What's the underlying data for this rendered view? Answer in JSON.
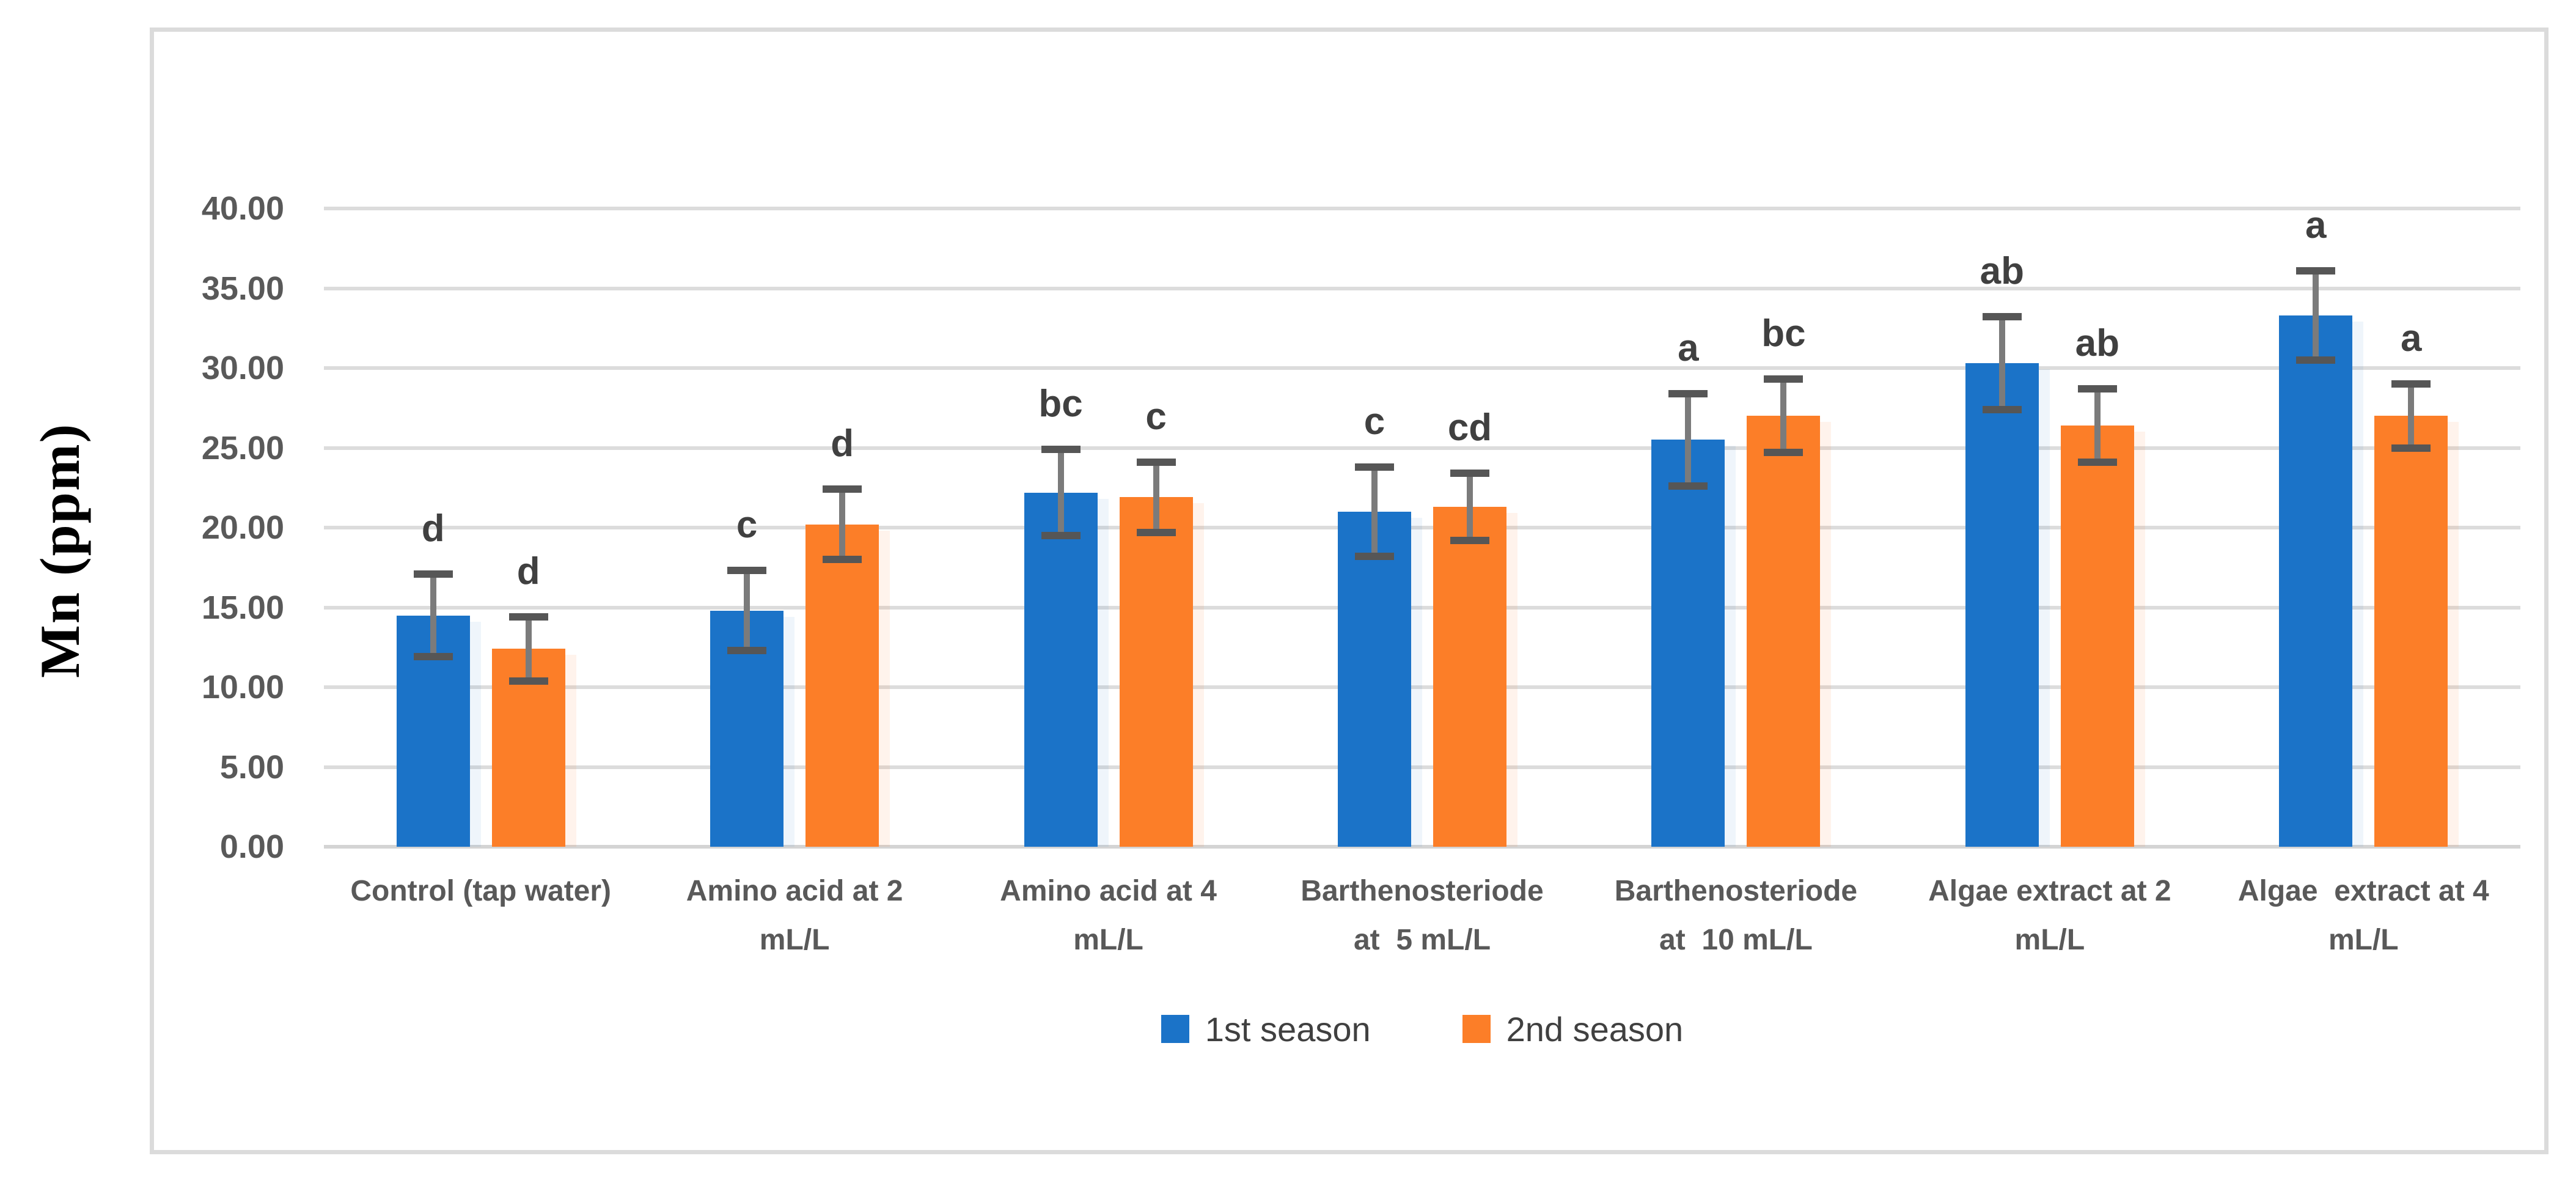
{
  "y_axis": {
    "title": "Mn (ppm)",
    "tick_labels": [
      "0.00",
      "5.00",
      "10.00",
      "15.00",
      "20.00",
      "25.00",
      "30.00",
      "35.00",
      "40.00"
    ]
  },
  "legend": {
    "items": [
      {
        "label": "1st season",
        "color": "#1B73C8"
      },
      {
        "label": "2nd season",
        "color": "#FC7E28"
      }
    ]
  },
  "chart_data": {
    "type": "bar",
    "ylabel": "Mn (ppm)",
    "ylim": [
      0,
      40
    ],
    "ytick_step": 5,
    "grid": true,
    "legend_position": "bottom",
    "categories": [
      "Control (tap water)",
      "Amino acid at 2 mL/L",
      "Amino acid at 4 mL/L",
      "Barthenosteriode at 5 mL/L",
      "Barthenosteriode at 10 mL/L",
      "Algae extract at 2 mL/L",
      "Algae extract at 4 mL/L"
    ],
    "category_label_lines": [
      [
        "Control (tap water)"
      ],
      [
        "Amino acid at 2",
        "mL/L"
      ],
      [
        "Amino acid at 4",
        "mL/L"
      ],
      [
        "Barthenosteriode",
        "at  5 mL/L"
      ],
      [
        "Barthenosteriode",
        "at  10 mL/L"
      ],
      [
        "Algae extract at 2",
        "mL/L"
      ],
      [
        "Algae  extract at 4",
        "mL/L"
      ]
    ],
    "series": [
      {
        "name": "1st season",
        "color": "#1B73C8",
        "values": [
          14.5,
          14.8,
          22.2,
          21.0,
          25.5,
          30.3,
          33.3
        ],
        "error": [
          2.6,
          2.5,
          2.7,
          2.8,
          2.9,
          2.9,
          2.8
        ],
        "letters": [
          "d",
          "c",
          "bc",
          "c",
          "a",
          "ab",
          "a"
        ]
      },
      {
        "name": "2nd season",
        "color": "#FC7E28",
        "values": [
          12.4,
          20.2,
          21.9,
          21.3,
          27.0,
          26.4,
          27.0
        ],
        "error": [
          2.0,
          2.2,
          2.2,
          2.1,
          2.3,
          2.3,
          2.0
        ],
        "letters": [
          "d",
          "d",
          "c",
          "cd",
          "bc",
          "ab",
          "a"
        ]
      }
    ]
  }
}
